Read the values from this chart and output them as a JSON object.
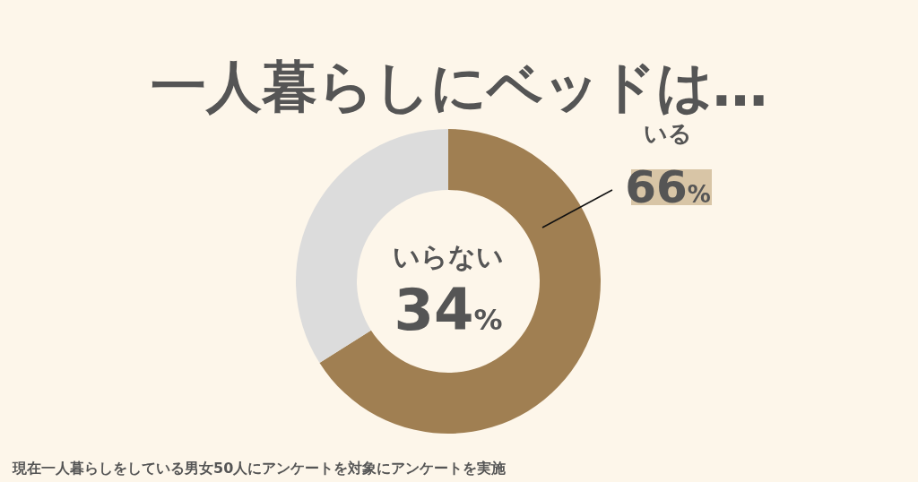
{
  "chart_data": {
    "type": "donut",
    "title": "一人暮らしにベッドは…",
    "categories": [
      "いる",
      "いらない"
    ],
    "values": [
      66,
      34
    ],
    "colors": [
      "#a07f52",
      "#dcdcdc"
    ],
    "value_labels": [
      "66%",
      "34%"
    ],
    "annotations": [
      "現在一人暮らしをしている男女50人にアンケートを対象にアンケートを実施"
    ]
  }
}
